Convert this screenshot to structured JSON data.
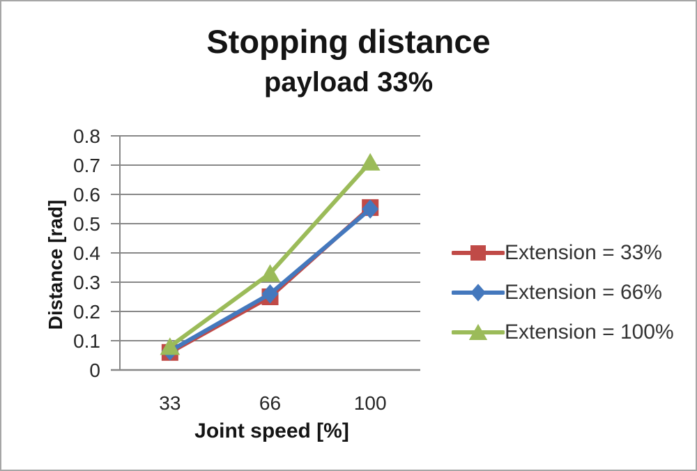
{
  "window": {
    "background": "#ffffff",
    "border_color": "#a6a6a6"
  },
  "chart": {
    "title": "Stopping distance",
    "subtitle": "payload 33%",
    "x_axis_label": "Joint speed [%]",
    "y_axis_label": "Distance [rad]"
  },
  "chart_data": {
    "type": "line",
    "title": "Stopping distance",
    "subtitle": "payload 33%",
    "xlabel": "Joint speed [%]",
    "ylabel": "Distance [rad]",
    "categories": [
      "33",
      "66",
      "100"
    ],
    "series": [
      {
        "name": "Extension = 33%",
        "marker": "square",
        "color": "#c04a47",
        "values": [
          0.06,
          0.25,
          0.555
        ]
      },
      {
        "name": "Extension = 66%",
        "marker": "diamond",
        "color": "#4478bd",
        "values": [
          0.065,
          0.26,
          0.55
        ]
      },
      {
        "name": "Extension = 100%",
        "marker": "triangle",
        "color": "#9bbb59",
        "values": [
          0.08,
          0.33,
          0.71
        ]
      }
    ],
    "ylim": [
      0,
      0.8
    ],
    "yticks": [
      0,
      0.1,
      0.2,
      0.3,
      0.4,
      0.5,
      0.6,
      0.7,
      0.8
    ],
    "grid": true,
    "gridline_color": "#878787",
    "axis_color": "#878787",
    "tick_label_color": "#262626",
    "legend_position": "right",
    "line_width": 6
  }
}
